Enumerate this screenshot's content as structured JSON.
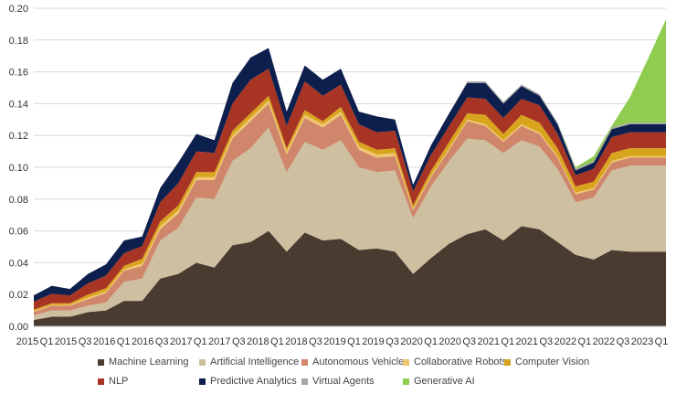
{
  "chart_data": {
    "type": "area",
    "stacked": true,
    "title": "",
    "xlabel": "",
    "ylabel": "",
    "ylim": [
      0,
      0.2
    ],
    "y_ticks": [
      "0.00",
      "0.02",
      "0.04",
      "0.06",
      "0.08",
      "0.10",
      "0.12",
      "0.14",
      "0.16",
      "0.18",
      "0.20"
    ],
    "x_tick_labels": [
      "2015",
      "Q1",
      "2015",
      "Q3",
      "2016",
      "Q1",
      "2016",
      "Q3",
      "2017",
      "Q1",
      "2017",
      "Q3",
      "2018",
      "Q1",
      "2018",
      "Q3",
      "2019",
      "Q1",
      "2019",
      "Q3",
      "2020",
      "Q1",
      "2020",
      "Q3",
      "2021",
      "Q1",
      "2021",
      "Q3",
      "2022",
      "Q1",
      "2022",
      "Q3",
      "2023",
      "Q1"
    ],
    "grid": "horizontal",
    "legend_position": "bottom",
    "categories": [
      "2015 Q1",
      "2015 Q2",
      "2015 Q3",
      "2015 Q4",
      "2016 Q1",
      "2016 Q2",
      "2016 Q3",
      "2016 Q4",
      "2017 Q1",
      "2017 Q2",
      "2017 Q3",
      "2017 Q4",
      "2018 Q1",
      "2018 Q2",
      "2018 Q3",
      "2018 Q4",
      "2019 Q1",
      "2019 Q2",
      "2019 Q3",
      "2019 Q4",
      "2020 Q1",
      "2020 Q2",
      "2020 Q3",
      "2020 Q4",
      "2021 Q1",
      "2021 Q2",
      "2021 Q3",
      "2021 Q4",
      "2022 Q1",
      "2022 Q2",
      "2022 Q3",
      "2022 Q4",
      "2023 Q1",
      "2023 Q2",
      "2023 Q3",
      "2023 Q4"
    ],
    "series": [
      {
        "name": "Machine Learning",
        "color": "#4a3b31",
        "values": [
          0.004,
          0.006,
          0.006,
          0.009,
          0.01,
          0.016,
          0.016,
          0.03,
          0.033,
          0.04,
          0.037,
          0.051,
          0.053,
          0.06,
          0.047,
          0.059,
          0.054,
          0.055,
          0.048,
          0.049,
          0.047,
          0.033,
          0.043,
          0.052,
          0.058,
          0.061,
          0.054,
          0.063,
          0.061,
          0.053,
          0.045,
          0.042,
          0.048,
          0.047,
          0.047,
          0.047
        ]
      },
      {
        "name": "Artificial Intelligence",
        "color": "#cdbf9f",
        "values": [
          0.003,
          0.004,
          0.004,
          0.004,
          0.005,
          0.012,
          0.014,
          0.024,
          0.029,
          0.041,
          0.043,
          0.053,
          0.059,
          0.065,
          0.05,
          0.057,
          0.057,
          0.062,
          0.052,
          0.048,
          0.051,
          0.035,
          0.045,
          0.052,
          0.06,
          0.056,
          0.055,
          0.054,
          0.052,
          0.046,
          0.033,
          0.039,
          0.05,
          0.054,
          0.054,
          0.054
        ]
      },
      {
        "name": "Autonomous Vehicle",
        "color": "#cf866b",
        "values": [
          0.002,
          0.003,
          0.003,
          0.004,
          0.006,
          0.007,
          0.008,
          0.007,
          0.009,
          0.011,
          0.012,
          0.014,
          0.017,
          0.015,
          0.011,
          0.015,
          0.014,
          0.016,
          0.011,
          0.009,
          0.009,
          0.005,
          0.006,
          0.007,
          0.011,
          0.009,
          0.007,
          0.009,
          0.008,
          0.007,
          0.005,
          0.005,
          0.005,
          0.005,
          0.005,
          0.005
        ]
      },
      {
        "name": "Collaborative Robots",
        "color": "#f0c66e",
        "values": [
          0.0005,
          0.0005,
          0.0005,
          0.001,
          0.001,
          0.001,
          0.0015,
          0.002,
          0.002,
          0.002,
          0.002,
          0.002,
          0.002,
          0.002,
          0.002,
          0.002,
          0.002,
          0.002,
          0.002,
          0.002,
          0.002,
          0.001,
          0.001,
          0.001,
          0.001,
          0.001,
          0.001,
          0.001,
          0.001,
          0.001,
          0.001,
          0.001,
          0.001,
          0.001,
          0.001,
          0.001
        ]
      },
      {
        "name": "Computer Vision",
        "color": "#d9a41d",
        "values": [
          0.001,
          0.001,
          0.001,
          0.002,
          0.002,
          0.002,
          0.003,
          0.003,
          0.003,
          0.003,
          0.003,
          0.003,
          0.003,
          0.003,
          0.002,
          0.003,
          0.002,
          0.003,
          0.003,
          0.003,
          0.003,
          0.002,
          0.003,
          0.004,
          0.004,
          0.006,
          0.004,
          0.006,
          0.006,
          0.005,
          0.004,
          0.004,
          0.005,
          0.005,
          0.005,
          0.005
        ]
      },
      {
        "name": "NLP",
        "color": "#a83424",
        "values": [
          0.005,
          0.006,
          0.005,
          0.007,
          0.008,
          0.008,
          0.008,
          0.012,
          0.014,
          0.013,
          0.012,
          0.017,
          0.021,
          0.017,
          0.014,
          0.018,
          0.016,
          0.014,
          0.011,
          0.011,
          0.011,
          0.009,
          0.01,
          0.01,
          0.01,
          0.01,
          0.01,
          0.01,
          0.011,
          0.009,
          0.007,
          0.008,
          0.01,
          0.01,
          0.01,
          0.01
        ]
      },
      {
        "name": "Predictive Analytics",
        "color": "#0d1f4d",
        "values": [
          0.004,
          0.005,
          0.004,
          0.006,
          0.007,
          0.008,
          0.006,
          0.009,
          0.013,
          0.011,
          0.008,
          0.013,
          0.014,
          0.013,
          0.009,
          0.01,
          0.01,
          0.01,
          0.008,
          0.01,
          0.007,
          0.004,
          0.006,
          0.008,
          0.009,
          0.01,
          0.009,
          0.008,
          0.006,
          0.006,
          0.003,
          0.004,
          0.005,
          0.005,
          0.005,
          0.005
        ]
      },
      {
        "name": "Virtual Agents",
        "color": "#a6a6a6",
        "values": [
          0,
          0,
          0,
          0,
          0,
          0,
          0,
          0,
          0,
          0,
          0,
          0,
          0,
          0,
          0,
          0,
          0,
          0,
          0,
          0,
          0,
          0,
          0,
          0,
          0.001,
          0.001,
          0.001,
          0.001,
          0.001,
          0.001,
          0.001,
          0.001,
          0.001,
          0.001,
          0.001,
          0.001
        ]
      },
      {
        "name": "Generative AI",
        "color": "#8fcc4f",
        "values": [
          0,
          0,
          0,
          0,
          0,
          0,
          0,
          0,
          0,
          0,
          0,
          0,
          0,
          0,
          0,
          0,
          0,
          0,
          0,
          0,
          0,
          0,
          0,
          0,
          0,
          0,
          0,
          0,
          0,
          0,
          0.001,
          0.003,
          0.001,
          0.016,
          0.04,
          0.065
        ]
      }
    ]
  }
}
